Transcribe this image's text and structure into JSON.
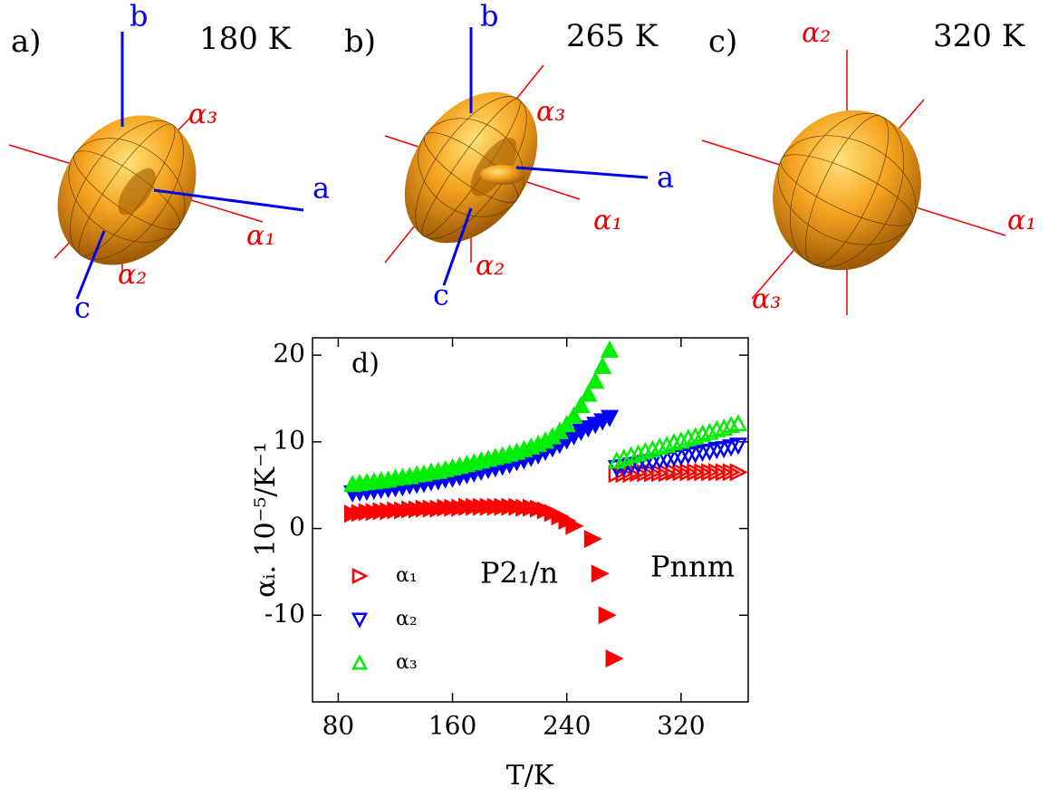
{
  "panels": [
    {
      "label": "a)",
      "temperature": "180 K",
      "axis_labels": [
        "b",
        "a",
        "c",
        "α₃",
        "α₁",
        "α₂"
      ]
    },
    {
      "label": "b)",
      "temperature": "265 K",
      "axis_labels": [
        "b",
        "a",
        "c",
        "α₃",
        "α₁",
        "α₂"
      ]
    },
    {
      "label": "c)",
      "temperature": "320 K",
      "axis_labels": [
        "α₂",
        "α₁",
        "α₃"
      ]
    }
  ],
  "chart_data": {
    "type": "scatter",
    "panel_label": "d)",
    "x_label": "T/K",
    "y_label": "αᵢ. 10⁻⁵/K⁻¹",
    "annotations": [
      "P2₁/n",
      "Pnnm"
    ],
    "xlim": [
      62,
      367
    ],
    "xticks": [
      80,
      160,
      240,
      320
    ],
    "ylim": [
      -20,
      22
    ],
    "yticks": [
      -10,
      0,
      10,
      20
    ],
    "legend": "lower left",
    "series": [
      {
        "color": "#ff0000",
        "marker": "triangle-right",
        "filled": true,
        "x": [
          90,
          95,
          100,
          105,
          110,
          115,
          120,
          125,
          130,
          135,
          140,
          145,
          150,
          155,
          160,
          165,
          170,
          175,
          180,
          185,
          190,
          195,
          200,
          205,
          210,
          215,
          220,
          225,
          230,
          235,
          240,
          245,
          258,
          263,
          268,
          273
        ],
        "values": [
          1.7,
          1.8,
          1.9,
          1.9,
          2.0,
          2.0,
          2.1,
          2.1,
          2.2,
          2.2,
          2.3,
          2.3,
          2.3,
          2.4,
          2.4,
          2.4,
          2.5,
          2.5,
          2.5,
          2.5,
          2.5,
          2.5,
          2.5,
          2.5,
          2.4,
          2.4,
          2.3,
          2.1,
          1.8,
          1.4,
          0.9,
          0.3,
          -1.2,
          -5.2,
          -10,
          -15
        ]
      },
      {
        "color": "#0000ff",
        "marker": "triangle-down",
        "filled": true,
        "x": [
          90,
          95,
          100,
          105,
          110,
          115,
          120,
          125,
          130,
          135,
          140,
          145,
          150,
          155,
          160,
          165,
          170,
          175,
          180,
          185,
          190,
          195,
          200,
          205,
          210,
          215,
          220,
          225,
          230,
          235,
          240,
          245,
          250,
          255,
          260,
          265,
          270
        ],
        "values": [
          4.1,
          4.2,
          4.3,
          4.4,
          4.5,
          4.6,
          4.7,
          4.8,
          5.0,
          5.1,
          5.2,
          5.4,
          5.5,
          5.7,
          5.8,
          6.0,
          6.2,
          6.4,
          6.6,
          6.8,
          7.0,
          7.2,
          7.4,
          7.7,
          7.9,
          8.2,
          8.5,
          8.9,
          9.3,
          9.7,
          10.2,
          10.7,
          11.2,
          11.6,
          12.0,
          12.4,
          12.8
        ]
      },
      {
        "color": "#00ee00",
        "marker": "triangle-up",
        "filled": true,
        "x": [
          90,
          95,
          100,
          105,
          110,
          115,
          120,
          125,
          130,
          135,
          140,
          145,
          150,
          155,
          160,
          165,
          170,
          175,
          180,
          185,
          190,
          195,
          200,
          205,
          210,
          215,
          220,
          225,
          230,
          235,
          240,
          245,
          250,
          255,
          260,
          265,
          270
        ],
        "values": [
          5.1,
          5.2,
          5.3,
          5.4,
          5.5,
          5.6,
          5.8,
          5.9,
          6.0,
          6.2,
          6.3,
          6.5,
          6.6,
          6.8,
          7.0,
          7.2,
          7.4,
          7.6,
          7.8,
          8.0,
          8.2,
          8.4,
          8.6,
          8.8,
          9.1,
          9.4,
          9.7,
          10.1,
          10.6,
          11.2,
          12.0,
          13.0,
          14.2,
          15.5,
          17.0,
          18.7,
          20.6
        ]
      },
      {
        "name": "α₁",
        "color": "#ff0000",
        "marker": "triangle-right",
        "filled": false,
        "x": [
          275,
          280,
          285,
          290,
          295,
          300,
          305,
          310,
          315,
          320,
          325,
          330,
          335,
          340,
          345,
          350,
          355,
          360
        ],
        "values": [
          6.3,
          6.3,
          6.3,
          6.4,
          6.4,
          6.4,
          6.4,
          6.4,
          6.5,
          6.5,
          6.5,
          6.5,
          6.5,
          6.5,
          6.5,
          6.5,
          6.5,
          6.5
        ]
      },
      {
        "name": "α₂",
        "color": "#0000ff",
        "marker": "triangle-down",
        "filled": false,
        "x": [
          275,
          280,
          285,
          290,
          295,
          300,
          305,
          310,
          315,
          320,
          325,
          330,
          335,
          340,
          345,
          350,
          355,
          360
        ],
        "values": [
          7.0,
          7.1,
          7.3,
          7.4,
          7.6,
          7.7,
          7.9,
          8.0,
          8.2,
          8.3,
          8.5,
          8.6,
          8.8,
          8.9,
          9.1,
          9.2,
          9.4,
          9.6
        ]
      },
      {
        "name": "α₃",
        "color": "#00ee00",
        "marker": "triangle-up",
        "filled": false,
        "x": [
          275,
          280,
          285,
          290,
          295,
          300,
          305,
          310,
          315,
          320,
          325,
          330,
          335,
          340,
          345,
          350,
          355,
          360
        ],
        "values": [
          7.8,
          8.1,
          8.4,
          8.6,
          8.9,
          9.1,
          9.4,
          9.6,
          9.9,
          10.1,
          10.4,
          10.6,
          10.9,
          11.1,
          11.4,
          11.6,
          11.9,
          12.1
        ]
      }
    ]
  }
}
